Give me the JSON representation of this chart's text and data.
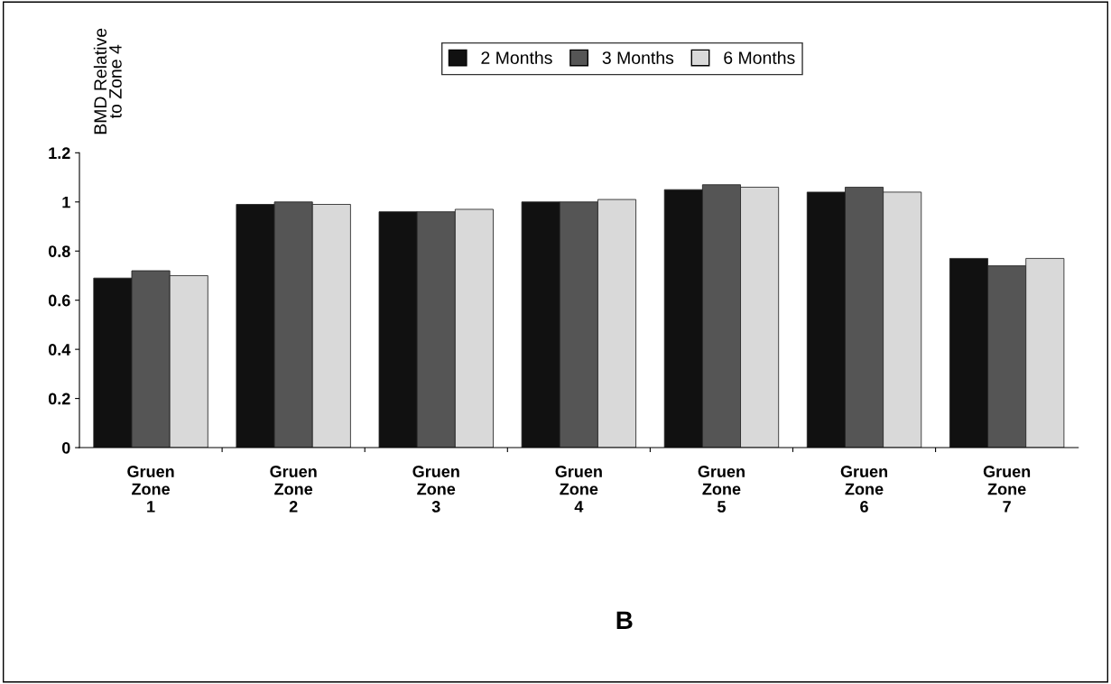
{
  "chart_data": {
    "type": "bar",
    "ylabel": "BMD Relative\nto Zone 4",
    "categories": [
      "Gruen\nZone\n1",
      "Gruen\nZone\n2",
      "Gruen\nZone\n3",
      "Gruen\nZone\n4",
      "Gruen\nZone\n5",
      "Gruen\nZone\n6",
      "Gruen\nZone\n7"
    ],
    "series": [
      {
        "name": "2 Months",
        "color": "#111111",
        "values": [
          0.69,
          0.99,
          0.96,
          1.0,
          1.05,
          1.04,
          0.77
        ]
      },
      {
        "name": "3 Months",
        "color": "#555555",
        "values": [
          0.72,
          1.0,
          0.96,
          1.0,
          1.07,
          1.06,
          0.74
        ]
      },
      {
        "name": "6 Months",
        "color": "#d9d9d9",
        "values": [
          0.7,
          0.99,
          0.97,
          1.01,
          1.06,
          1.04,
          0.77
        ]
      }
    ],
    "ylim": [
      0,
      1.2
    ],
    "yticks": [
      0,
      0.2,
      0.4,
      0.6,
      0.8,
      1,
      1.2
    ],
    "grid": false,
    "legend": "top",
    "annotations": [
      "B"
    ]
  }
}
